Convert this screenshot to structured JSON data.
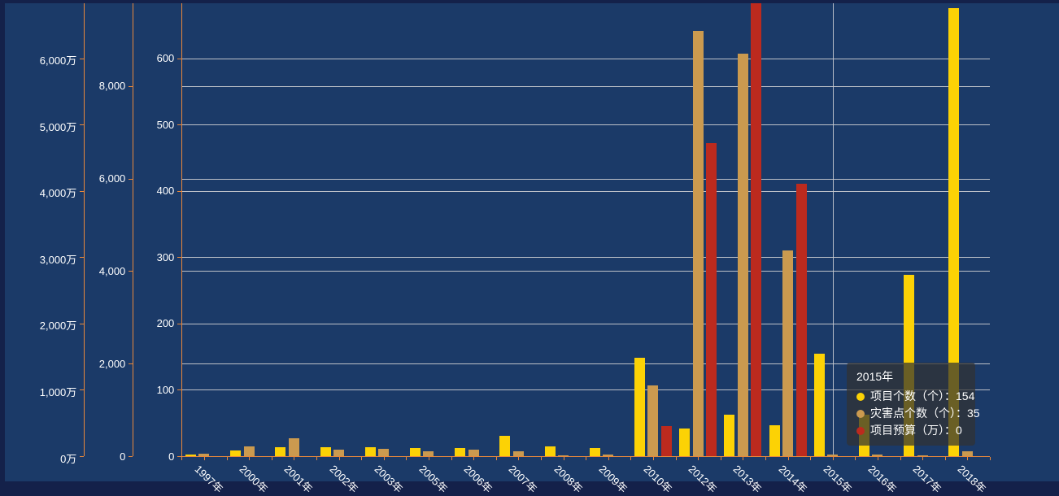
{
  "colors": {
    "frame": "#14214A",
    "plot_background": "#1B3A68",
    "axis_orange": "#E8883C",
    "gridline": "#D9D9D9",
    "label_text": "#FFFFFF",
    "series_yellow": "#FCD205",
    "series_tan": "#CB9A4F",
    "series_red": "#BC2A1E",
    "axis_pointer": "#C9CCD3",
    "tooltip_background": "rgba(50,50,50,0.72)"
  },
  "chart_data": {
    "type": "bar",
    "title": "",
    "legend_position": "none",
    "grid": true,
    "categories": [
      "1997年",
      "2000年",
      "2001年",
      "2002年",
      "2003年",
      "2005年",
      "2006年",
      "2007年",
      "2008年",
      "2009年",
      "2010年",
      "2012年",
      "2013年",
      "2014年",
      "2015年",
      "2016年",
      "2017年",
      "2018年"
    ],
    "series": [
      {
        "name": "项目个数（个）",
        "axis": "count",
        "color_key": "series_yellow",
        "values": [
          2,
          9,
          14,
          13,
          13,
          12,
          12,
          31,
          15,
          12,
          148,
          42,
          63,
          47,
          154,
          62,
          274,
          676
        ]
      },
      {
        "name": "灾害点个数（个）",
        "axis": "points",
        "color_key": "series_tan",
        "values": [
          50,
          205,
          380,
          135,
          165,
          110,
          145,
          100,
          25,
          30,
          1530,
          9200,
          8700,
          4450,
          35,
          35,
          20,
          110
        ]
      },
      {
        "name": "项目预算（万）",
        "axis": "budget",
        "color_key": "series_red",
        "values": [
          0,
          0,
          0,
          0,
          0,
          0,
          0,
          0,
          0,
          0,
          450,
          4715,
          6900,
          4110,
          0,
          0,
          0,
          0
        ]
      }
    ],
    "axes": {
      "budget": {
        "position": "outer-left",
        "unit": "万",
        "ylim": [
          0,
          6830
        ],
        "ticks": [
          {
            "label": "0万",
            "value": 0
          },
          {
            "label": "1,000万",
            "value": 1000
          },
          {
            "label": "2,000万",
            "value": 2000
          },
          {
            "label": "3,000万",
            "value": 3000
          },
          {
            "label": "4,000万",
            "value": 4000
          },
          {
            "label": "5,000万",
            "value": 5000
          },
          {
            "label": "6,000万",
            "value": 6000
          }
        ],
        "gridlines": false
      },
      "points": {
        "position": "middle-left",
        "unit": "个",
        "ylim": [
          0,
          9790
        ],
        "ticks": [
          {
            "label": "0",
            "value": 0
          },
          {
            "label": "2,000",
            "value": 2000
          },
          {
            "label": "4,000",
            "value": 4000
          },
          {
            "label": "6,000",
            "value": 6000
          },
          {
            "label": "8,000",
            "value": 8000
          }
        ],
        "gridlines": true
      },
      "count": {
        "position": "inner-left",
        "unit": "个",
        "ylim": [
          0,
          683
        ],
        "ticks": [
          {
            "label": "0",
            "value": 0
          },
          {
            "label": "100",
            "value": 100
          },
          {
            "label": "200",
            "value": 200
          },
          {
            "label": "300",
            "value": 300
          },
          {
            "label": "400",
            "value": 400
          },
          {
            "label": "500",
            "value": 500
          },
          {
            "label": "600",
            "value": 600
          }
        ],
        "gridlines": true
      }
    }
  },
  "tooltip": {
    "title": "2015年",
    "pointer_category": "2015年",
    "rows": [
      {
        "text": "项目个数（个）：154",
        "color_key": "series_yellow"
      },
      {
        "text": "灾害点个数（个）：35",
        "color_key": "series_tan"
      },
      {
        "text": "项目预算（万）：0",
        "color_key": "series_red"
      }
    ]
  }
}
